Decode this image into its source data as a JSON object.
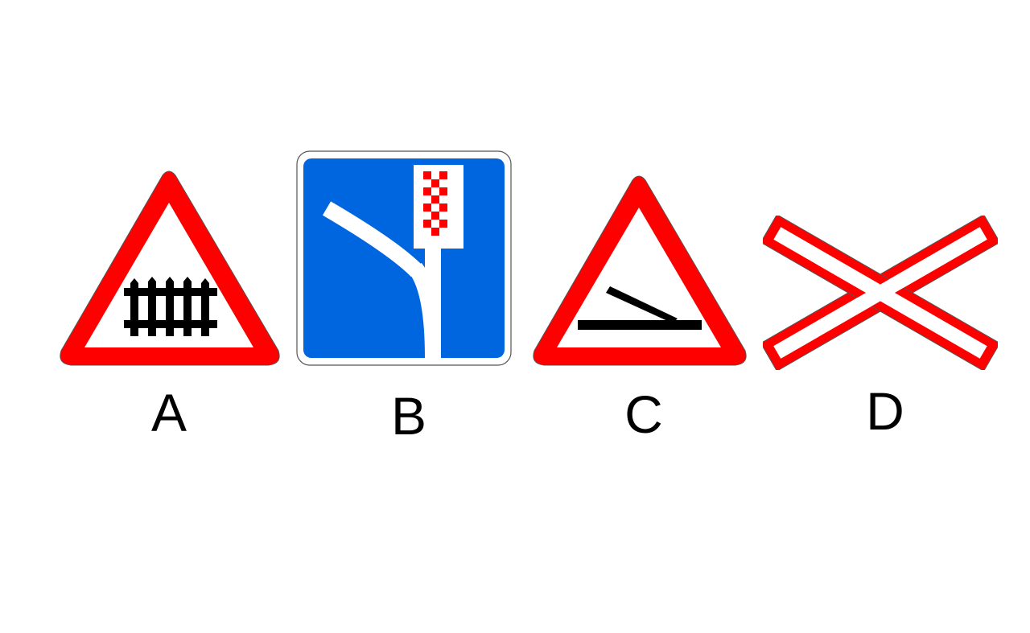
{
  "colors": {
    "background": "#ffffff",
    "sign_red": "#ff0000",
    "sign_blue": "#0066e0",
    "sign_white": "#ffffff",
    "symbol_black": "#000000",
    "outline_gray": "#555555"
  },
  "signs": [
    {
      "label": "A",
      "shape": "triangle",
      "icon": "railway-barrier-icon"
    },
    {
      "label": "B",
      "shape": "square",
      "icon": "emergency-stopping-lane-icon"
    },
    {
      "label": "C",
      "shape": "triangle",
      "icon": "dangerous-roadside-icon"
    },
    {
      "label": "D",
      "shape": "cross",
      "icon": "single-track-railway-crossing-icon"
    }
  ]
}
